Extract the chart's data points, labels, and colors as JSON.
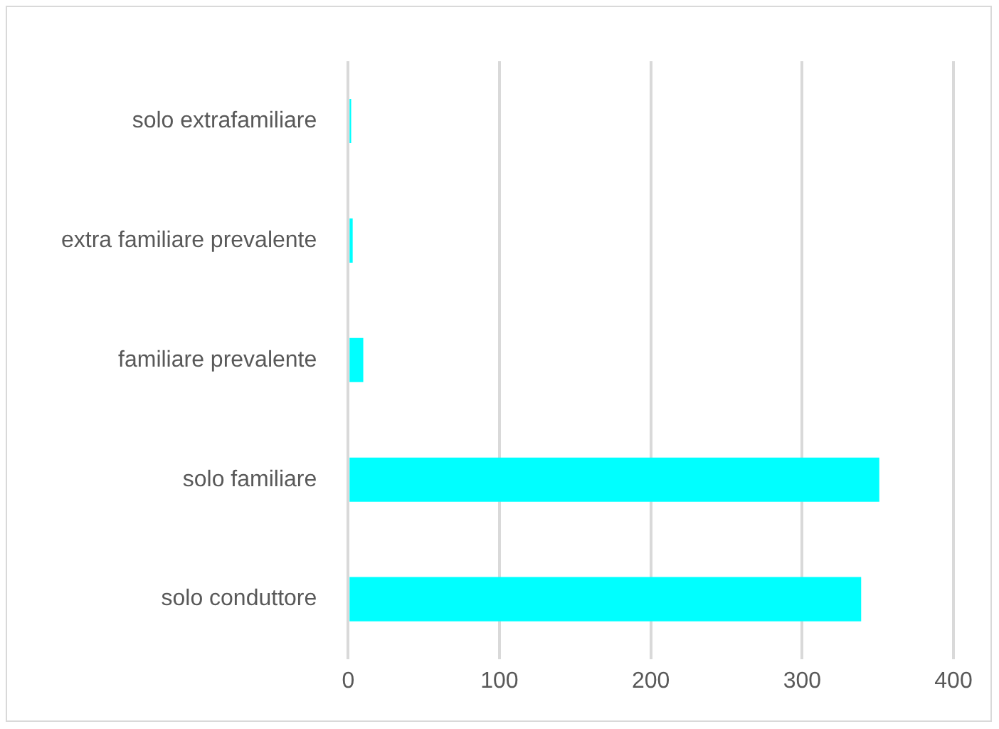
{
  "chart_data": {
    "type": "bar",
    "orientation": "horizontal",
    "categories": [
      "solo extrafamiliare",
      "extra familiare prevalente",
      "familiare prevalente",
      "solo familiare",
      "solo conduttore"
    ],
    "values": [
      2,
      3,
      10,
      351,
      339
    ],
    "color": "#00ffff",
    "xlim": [
      0,
      400
    ],
    "xticks": [
      0,
      100,
      200,
      300,
      400
    ],
    "grid": "x",
    "legend": false
  }
}
